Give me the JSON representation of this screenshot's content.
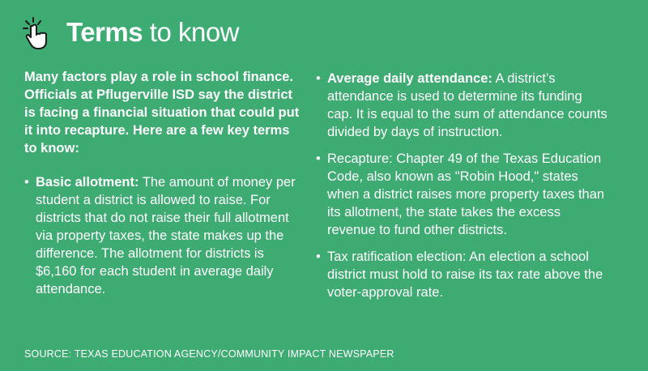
{
  "header": {
    "title_bold": "Terms",
    "title_rest": "to know"
  },
  "intro": "Many factors play a role in school finance. Officials at Pflugerville ISD say the district is facing a financial situation that could put it into recapture. Here are a few key terms to know:",
  "terms": [
    {
      "label": "Basic allotment:",
      "text": "The amount of money per student a district is allowed to raise. For districts that do not raise their full allotment via property taxes, the state makes up the difference. The allotment for districts is $6,160 for each student in average daily attendance."
    },
    {
      "label": "Average daily attendance:",
      "text": "A district’s attendance is used to determine its funding cap. It is equal to the sum of attendance counts divided by days of instruction."
    },
    {
      "text": "Recapture: Chapter 49 of the Texas Education Code, also known as \"Robin Hood,\" states when a district raises more property taxes than its allotment, the state takes the excess revenue to fund other districts."
    },
    {
      "text": "Tax ratification election: An election a school district must hold to raise its tax rate above the voter-approval rate."
    }
  ],
  "source": "SOURCE: TEXAS EDUCATION AGENCY/COMMUNITY IMPACT NEWSPAPER"
}
